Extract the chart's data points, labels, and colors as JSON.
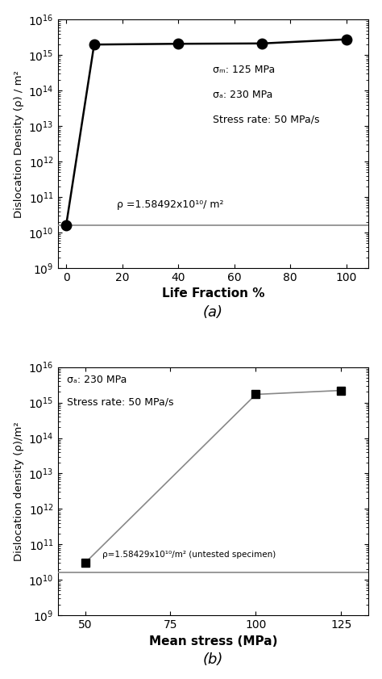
{
  "plot_a": {
    "x": [
      0,
      10,
      40,
      70,
      100
    ],
    "y": [
      15849200000.0,
      2000000000000000.0,
      2100000000000000.0,
      2150000000000000.0,
      2800000000000000.0
    ],
    "hline_y": 15849200000.0,
    "hline_label": "ρ =1.58492x10¹⁰/ m²",
    "xlabel": "Life Fraction %",
    "ylabel": "Dislocation Density (ρ) / m²",
    "ylim": [
      1000000000.0,
      1e+16
    ],
    "xlim": [
      -3,
      108
    ],
    "xticks": [
      0,
      20,
      40,
      60,
      80,
      100
    ],
    "annotation_line1": "σₘ: 125 MPa",
    "annotation_line2": "σₐ: 230 MPa",
    "annotation_line3": "Stress rate: 50 MPa/s",
    "label": "(a)",
    "marker": "o",
    "markersize": 9,
    "color": "black",
    "linewidth": 1.8,
    "hline_color": "#888888"
  },
  "plot_b": {
    "x": [
      50,
      100,
      125
    ],
    "y": [
      30000000000.0,
      1700000000000000.0,
      2200000000000000.0
    ],
    "hline_y": 15842900000.0,
    "hline_label": "ρ=1.58429x10¹⁰/m² (untested specimen)",
    "xlabel": "Mean stress (MPa)",
    "ylabel": "Dislocation density (ρ)/m²",
    "ylim": [
      1000000000.0,
      1e+16
    ],
    "xlim": [
      42,
      133
    ],
    "xticks": [
      50,
      75,
      100,
      125
    ],
    "annotation_line1": "σₐ: 230 MPa",
    "annotation_line2": "Stress rate: 50 MPa/s",
    "label": "(b)",
    "marker": "s",
    "markersize": 7,
    "color": "black",
    "linewidth": 1.2,
    "hline_color": "#888888"
  }
}
